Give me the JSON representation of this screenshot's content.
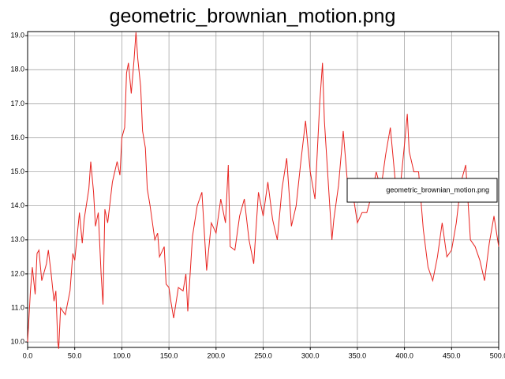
{
  "chart_data": {
    "type": "line",
    "title": "geometric_brownian_motion.png",
    "x": [
      0,
      3,
      5,
      8,
      10,
      12,
      15,
      20,
      22,
      25,
      28,
      30,
      32,
      33,
      35,
      40,
      45,
      48,
      50,
      55,
      58,
      60,
      65,
      67,
      70,
      72,
      75,
      78,
      80,
      82,
      85,
      90,
      95,
      98,
      100,
      103,
      105,
      107,
      110,
      113,
      115,
      117,
      120,
      122,
      125,
      127,
      130,
      135,
      138,
      140,
      145,
      147,
      150,
      152,
      155,
      160,
      165,
      168,
      170,
      175,
      180,
      185,
      190,
      195,
      200,
      205,
      210,
      213,
      215,
      220,
      225,
      230,
      235,
      240,
      245,
      250,
      255,
      260,
      265,
      270,
      275,
      280,
      285,
      290,
      295,
      300,
      305,
      310,
      313,
      315,
      320,
      323,
      325,
      330,
      335,
      340,
      345,
      350,
      355,
      360,
      365,
      370,
      375,
      380,
      385,
      390,
      395,
      400,
      403,
      405,
      410,
      415,
      420,
      425,
      430,
      435,
      440,
      445,
      450,
      455,
      460,
      465,
      470,
      475,
      480,
      485,
      490,
      495,
      500
    ],
    "series": [
      {
        "name": "geometric_brownian_motion.png",
        "color": "#e8231f",
        "values": [
          10.0,
          11.5,
          12.2,
          11.4,
          12.6,
          12.7,
          11.8,
          12.3,
          12.7,
          12.0,
          11.2,
          11.5,
          10.0,
          9.8,
          11.0,
          10.8,
          11.5,
          12.6,
          12.4,
          13.8,
          12.9,
          13.6,
          14.5,
          15.3,
          14.4,
          13.4,
          13.8,
          12.0,
          11.1,
          13.9,
          13.5,
          14.7,
          15.3,
          14.9,
          16.0,
          16.3,
          17.9,
          18.2,
          17.3,
          18.3,
          19.1,
          18.3,
          17.5,
          16.2,
          15.7,
          14.5,
          14.0,
          13.0,
          13.2,
          12.5,
          12.8,
          11.7,
          11.6,
          11.2,
          10.7,
          11.6,
          11.5,
          12.0,
          10.9,
          13.1,
          14.0,
          14.4,
          12.1,
          13.5,
          13.2,
          14.2,
          13.5,
          15.2,
          12.8,
          12.7,
          13.7,
          14.2,
          13.0,
          12.3,
          14.4,
          13.7,
          14.7,
          13.6,
          13.0,
          14.5,
          15.4,
          13.4,
          14.0,
          15.3,
          16.5,
          15.0,
          14.2,
          17.0,
          18.2,
          16.5,
          14.3,
          13.0,
          13.6,
          14.6,
          16.2,
          14.5,
          14.4,
          13.5,
          13.8,
          13.8,
          14.3,
          15.0,
          14.5,
          15.5,
          16.3,
          14.8,
          14.4,
          15.8,
          16.7,
          15.6,
          15.0,
          15.0,
          13.3,
          12.2,
          11.8,
          12.5,
          13.5,
          12.5,
          12.7,
          13.5,
          14.7,
          15.2,
          13.0,
          12.8,
          12.4,
          11.8,
          12.9,
          13.7,
          12.8
        ]
      }
    ],
    "xlim": [
      0,
      500
    ],
    "ylim": [
      9.84,
      19.12
    ],
    "xticks": [
      {
        "value": 0,
        "label": "0.0"
      },
      {
        "value": 50,
        "label": "50.0"
      },
      {
        "value": 100,
        "label": "100.0"
      },
      {
        "value": 150,
        "label": "150.0"
      },
      {
        "value": 200,
        "label": "200.0"
      },
      {
        "value": 250,
        "label": "250.0"
      },
      {
        "value": 300,
        "label": "300.0"
      },
      {
        "value": 350,
        "label": "350.0"
      },
      {
        "value": 400,
        "label": "400.0"
      },
      {
        "value": 450,
        "label": "450.0"
      },
      {
        "value": 500,
        "label": "500.0"
      }
    ],
    "yticks": [
      {
        "value": 10,
        "label": "10.0"
      },
      {
        "value": 11,
        "label": "11.0"
      },
      {
        "value": 12,
        "label": "12.0"
      },
      {
        "value": 13,
        "label": "13.0"
      },
      {
        "value": 14,
        "label": "14.0"
      },
      {
        "value": 15,
        "label": "15.0"
      },
      {
        "value": 16,
        "label": "16.0"
      },
      {
        "value": 17,
        "label": "17.0"
      },
      {
        "value": 18,
        "label": "18.0"
      },
      {
        "value": 19,
        "label": "19.0"
      }
    ],
    "grid": true,
    "legend": "right"
  }
}
